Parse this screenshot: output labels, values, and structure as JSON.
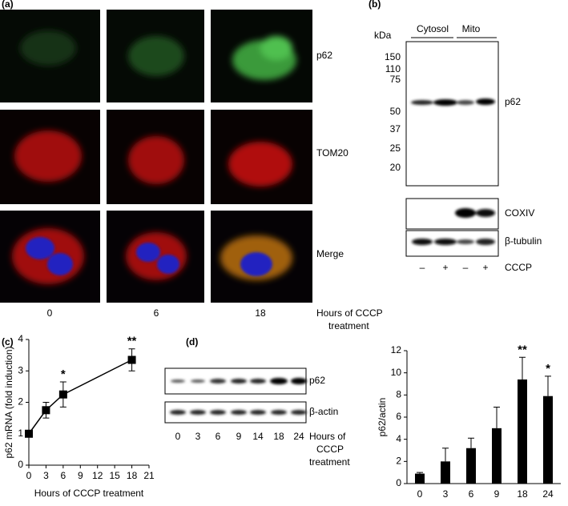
{
  "panel_a": {
    "label": "(a)",
    "rows": [
      "p62",
      "TOM20",
      "Merge"
    ],
    "columns": [
      "0",
      "6",
      "18"
    ],
    "axis_title": [
      "Hours of CCCP",
      "treatment"
    ]
  },
  "panel_b": {
    "label": "(b)",
    "unit": "kDa",
    "groups": [
      "Cytosol",
      "Mito"
    ],
    "markers": [
      "150",
      "110",
      "75",
      "50",
      "37",
      "25",
      "20"
    ],
    "blots": [
      "p62",
      "COXIV",
      "β-tubulin"
    ],
    "treatment_signs": [
      "–",
      "+",
      "–",
      "+"
    ],
    "treatment": "CCCP"
  },
  "panel_d_blot": {
    "blots": [
      "p62",
      "β-actin"
    ],
    "lanes": [
      "0",
      "3",
      "6",
      "9",
      "14",
      "18",
      "24"
    ],
    "axis_title": [
      "Hours of",
      "CCCP",
      "treatment"
    ]
  },
  "chart_data": [
    {
      "type": "line",
      "panel_label": "(c)",
      "xlabel": "Hours of CCCP  treatment",
      "ylabel": "p62 mRNA (fold induction)",
      "x": [
        0,
        3,
        6,
        18
      ],
      "values": [
        1,
        1.75,
        2.25,
        3.35
      ],
      "errors": [
        0.05,
        0.25,
        0.4,
        0.35
      ],
      "significance": [
        null,
        null,
        "*",
        "**"
      ],
      "xlim": [
        0,
        21
      ],
      "xticks": [
        0,
        3,
        6,
        9,
        12,
        15,
        18,
        21
      ],
      "ylim": [
        0,
        4
      ],
      "yticks": [
        0,
        1,
        2,
        3,
        4
      ],
      "color": "#000000"
    },
    {
      "type": "bar",
      "panel_label": "(d)",
      "xlabel": "Hours of CCCP treatment",
      "ylabel": "p62/actin",
      "categories": [
        "0",
        "3",
        "6",
        "9",
        "18",
        "24"
      ],
      "values": [
        0.9,
        2,
        3.2,
        5,
        9.4,
        7.9
      ],
      "errors": [
        0.1,
        1.2,
        0.9,
        1.9,
        2,
        1.8
      ],
      "significance": [
        null,
        null,
        null,
        null,
        "**",
        "*"
      ],
      "ylim": [
        0,
        12
      ],
      "yticks": [
        0,
        2,
        4,
        6,
        8,
        10,
        12
      ],
      "color": "#000000"
    }
  ]
}
